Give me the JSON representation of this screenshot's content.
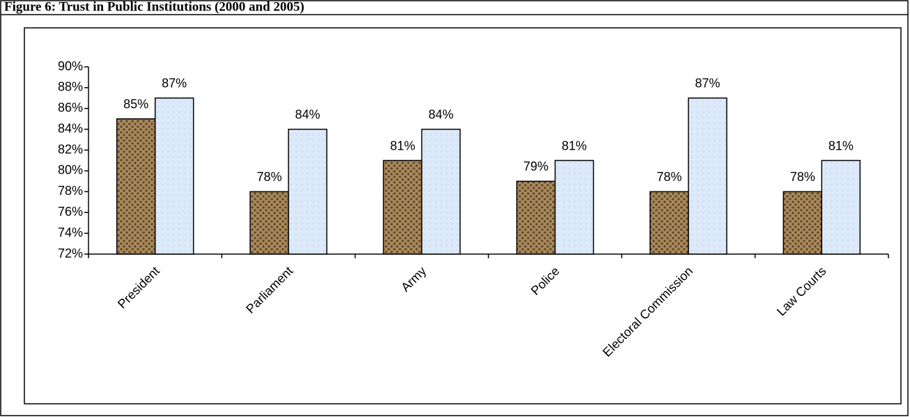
{
  "chart_data": {
    "type": "bar",
    "title": "Figure 6:  Trust in  Public Institutions (2000 and 2005)",
    "categories": [
      "President",
      "Parliament",
      "Army",
      "Police",
      "Electoral Commission",
      "Law Courts"
    ],
    "series": [
      {
        "color": "#a88a5c",
        "values": [
          85,
          78,
          81,
          79,
          78,
          78
        ],
        "value_labels": [
          "85%",
          "78%",
          "81%",
          "79%",
          "78%",
          "78%"
        ]
      },
      {
        "color": "#d4e4f7",
        "values": [
          87,
          84,
          84,
          81,
          87,
          81
        ],
        "value_labels": [
          "87%",
          "84%",
          "84%",
          "81%",
          "87%",
          "81%"
        ]
      }
    ],
    "ylim": [
      72,
      90
    ],
    "yticks": [
      {
        "value": 72,
        "label": "72%"
      },
      {
        "value": 74,
        "label": "74%"
      },
      {
        "value": 76,
        "label": "76%"
      },
      {
        "value": 78,
        "label": "78%"
      },
      {
        "value": 80,
        "label": "80%"
      },
      {
        "value": 82,
        "label": "82%"
      },
      {
        "value": 84,
        "label": "84%"
      },
      {
        "value": 86,
        "label": "86%"
      },
      {
        "value": 88,
        "label": "88%"
      },
      {
        "value": 90,
        "label": "90%"
      }
    ],
    "grid": false
  }
}
